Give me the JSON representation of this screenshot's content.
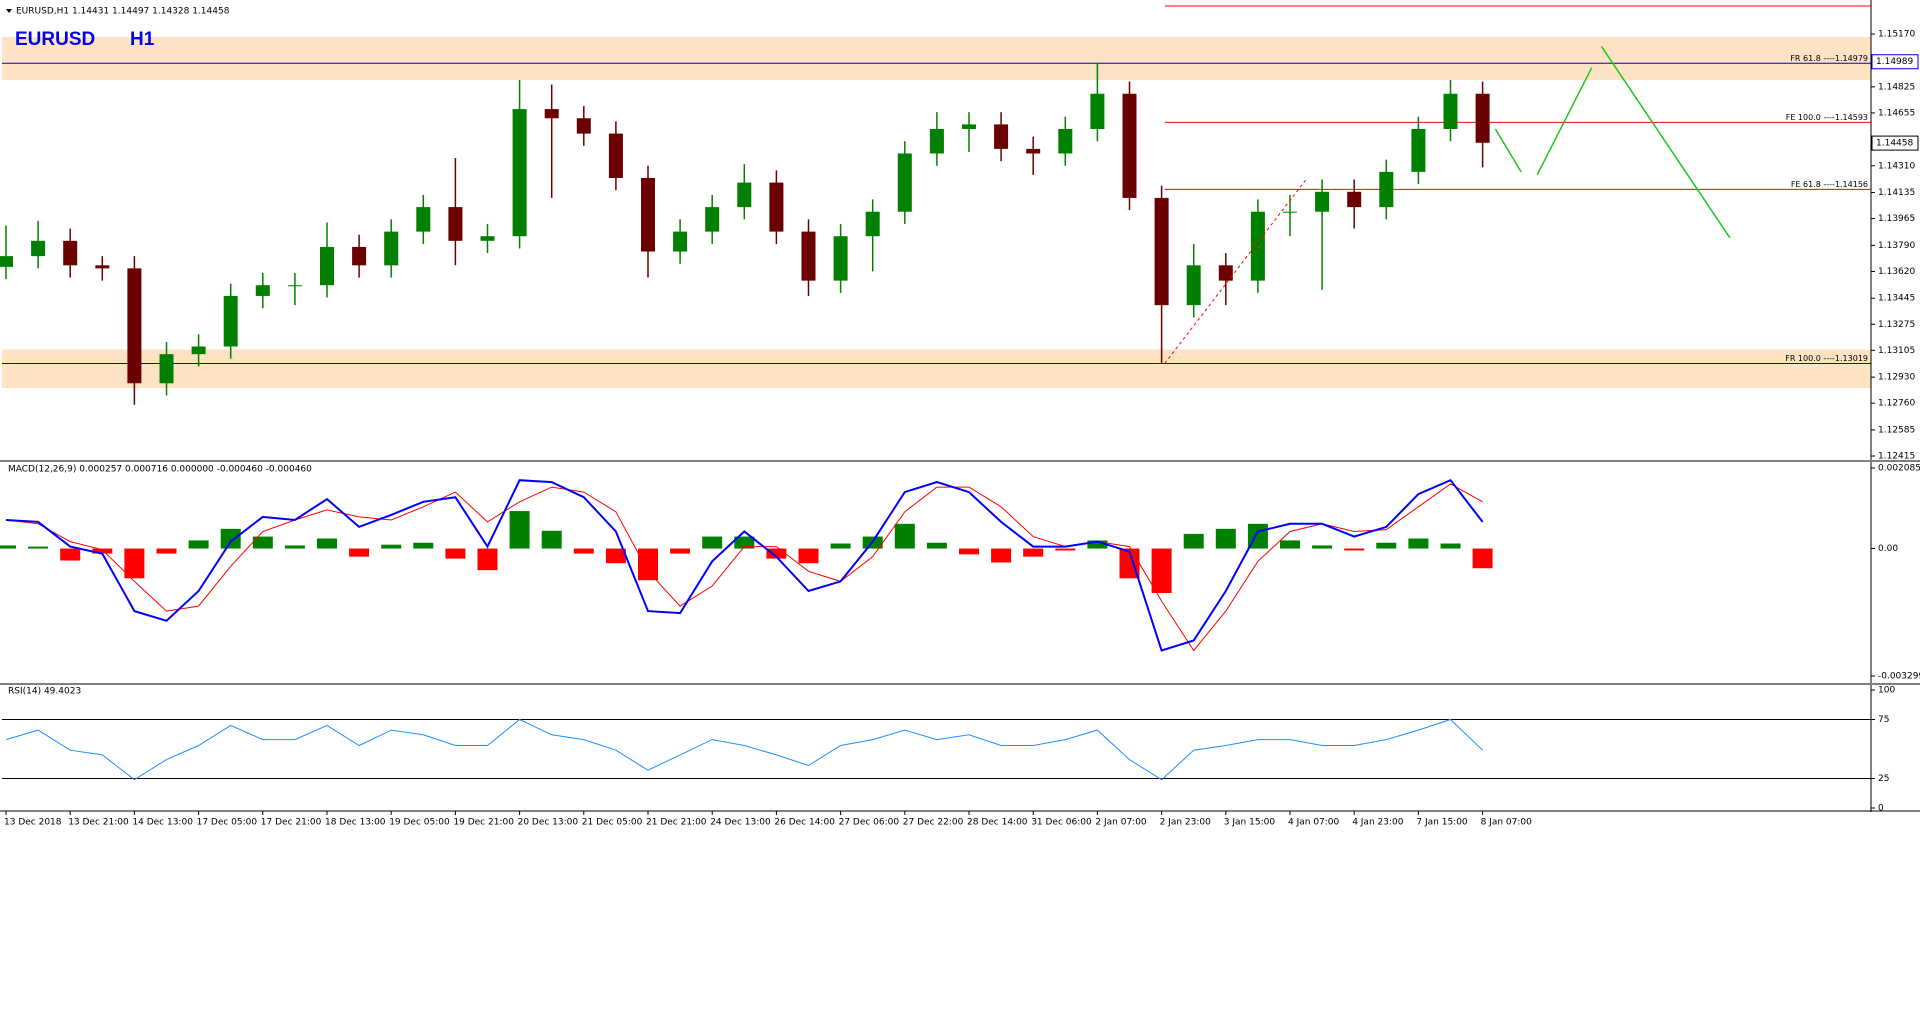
{
  "chart_data": [
    {
      "type": "candlestick",
      "title": "EURUSD,H1 1.14431 1.14497 1.14328 1.14458",
      "symbol": "EURUSD",
      "timeframe": "H1",
      "categories": [
        "13 Dec 2018",
        null,
        "13 Dec 21:00",
        null,
        "14 Dec 13:00",
        null,
        "17 Dec 05:00",
        null,
        "17 Dec 21:00",
        null,
        "18 Dec 13:00",
        null,
        "19 Dec 05:00",
        null,
        "19 Dec 21:00",
        null,
        "20 Dec 13:00",
        null,
        "21 Dec 05:00",
        null,
        "21 Dec 21:00",
        null,
        "24 Dec 13:00",
        null,
        "26 Dec 14:00",
        null,
        "27 Dec 06:00",
        null,
        "27 Dec 22:00",
        null,
        "28 Dec 14:00",
        null,
        "31 Dec 06:00",
        null,
        "2 Jan 07:00",
        null,
        "2 Jan 23:00",
        null,
        "3 Jan 15:00",
        null,
        "4 Jan 07:00",
        null,
        "4 Jan 23:00",
        null,
        "7 Jan 15:00",
        null,
        "8 Jan 07:00"
      ],
      "open": [
        1.1365,
        1.1372,
        1.1382,
        1.1366,
        1.1364,
        1.1289,
        1.1308,
        1.1313,
        1.1346,
        1.1353,
        1.1353,
        1.1378,
        1.1366,
        1.1388,
        1.1404,
        1.1382,
        1.1385,
        1.1468,
        1.1462,
        1.1452,
        1.1423,
        1.1375,
        1.1388,
        1.1404,
        1.142,
        1.1388,
        1.1356,
        1.1385,
        1.1401,
        1.1439,
        1.1455,
        1.1458,
        1.1442,
        1.1439,
        1.1455,
        1.1478,
        1.141,
        1.134,
        1.1366,
        1.1356,
        1.1401,
        1.1401,
        1.1414,
        1.1404,
        1.1427,
        1.1455,
        1.1478
      ],
      "high": [
        1.1392,
        1.1395,
        1.139,
        1.1372,
        1.1372,
        1.1316,
        1.1321,
        1.1354,
        1.1361,
        1.1361,
        1.1394,
        1.1386,
        1.1396,
        1.1412,
        1.1436,
        1.1393,
        1.1487,
        1.1484,
        1.147,
        1.146,
        1.1431,
        1.1396,
        1.1412,
        1.1432,
        1.1428,
        1.1396,
        1.1393,
        1.1409,
        1.1447,
        1.1466,
        1.1466,
        1.1466,
        1.145,
        1.1463,
        1.1498,
        1.1486,
        1.1418,
        1.138,
        1.1374,
        1.1409,
        1.1412,
        1.1422,
        1.1422,
        1.1435,
        1.1463,
        1.1487,
        1.1486
      ],
      "low": [
        1.1357,
        1.1364,
        1.1358,
        1.1356,
        1.1275,
        1.1281,
        1.13,
        1.1305,
        1.1338,
        1.134,
        1.1345,
        1.1358,
        1.1358,
        1.138,
        1.1366,
        1.1374,
        1.1377,
        1.141,
        1.1444,
        1.1415,
        1.1358,
        1.1367,
        1.138,
        1.1396,
        1.138,
        1.1346,
        1.1348,
        1.1362,
        1.1393,
        1.1431,
        1.144,
        1.1434,
        1.1425,
        1.1431,
        1.1447,
        1.1402,
        1.1302,
        1.1332,
        1.134,
        1.1348,
        1.1385,
        1.135,
        1.139,
        1.1396,
        1.1419,
        1.1447,
        1.143
      ],
      "close": [
        1.1372,
        1.1382,
        1.1366,
        1.1364,
        1.1289,
        1.1308,
        1.1313,
        1.1346,
        1.1353,
        1.1353,
        1.1378,
        1.1366,
        1.1388,
        1.1404,
        1.1382,
        1.1385,
        1.1468,
        1.1462,
        1.1452,
        1.1423,
        1.1375,
        1.1388,
        1.1404,
        1.142,
        1.1388,
        1.1356,
        1.1385,
        1.1401,
        1.1439,
        1.1455,
        1.1458,
        1.1442,
        1.1439,
        1.1455,
        1.1478,
        1.141,
        1.134,
        1.1366,
        1.1356,
        1.1401,
        1.1401,
        1.1414,
        1.1404,
        1.1427,
        1.1455,
        1.1478,
        1.1446
      ],
      "up_color": "#008000",
      "down_color": "#6b0000",
      "ylim": [
        1.12389,
        1.15366
      ],
      "yticks": [
        {
          "value": 1.1517,
          "label": "1.15170"
        },
        1.14825,
        1.14655,
        {
          "value": 1.1431,
          "label": "1.14310"
        },
        1.14135,
        1.13965,
        {
          "value": 1.1379,
          "label": "1.13790"
        },
        {
          "value": 1.1362,
          "label": "1.13620"
        },
        1.13445,
        1.13275,
        1.13105,
        {
          "value": 1.1293,
          "label": "1.12930"
        },
        {
          "value": 1.1276,
          "label": "1.12760"
        },
        1.12585,
        1.12415
      ],
      "zones": [
        {
          "low": 1.1487,
          "high": 1.1515,
          "color": "#fde3c4"
        },
        {
          "low": 1.1286,
          "high": 1.1311,
          "color": "#fde3c4"
        }
      ],
      "levels": [
        {
          "label": "FR 61.8 ----1.14979",
          "value": 1.14979,
          "color": "#0000cc"
        },
        {
          "label": "FR 100.0 ----1.13019",
          "value": 1.13019,
          "color": "#0000cc"
        },
        {
          "label": "FE 100.0 ----1.14593",
          "value": 1.14593,
          "color": "#ff0000",
          "x_start": 36.1
        },
        {
          "label": "FE 61.8 ----1.14156",
          "value": 1.14156,
          "color": "#ff0000",
          "x_start": 36.1
        },
        {
          "value": 1.15353,
          "color": "#ff0000",
          "x_start": 36.1
        }
      ],
      "fib_leg": {
        "x": [
          36.1,
          40.5
        ],
        "values": [
          1.1302,
          1.1422
        ],
        "color": "#ff0000"
      },
      "projection": {
        "color": "#22c322",
        "segments": [
          {
            "x": [
              46.4,
              47.2
            ],
            "values": [
              1.1455,
              1.1427
            ]
          },
          {
            "x": [
              47.7,
              49.4
            ],
            "values": [
              1.1425,
              1.1495
            ]
          },
          {
            "x": [
              49.7,
              53.7
            ],
            "values": [
              1.1509,
              1.1384
            ]
          }
        ]
      },
      "price_boxes": [
        {
          "value": 1.14989,
          "color": "#0000cc"
        },
        {
          "value": 1.14458,
          "color": "#000000"
        }
      ]
    },
    {
      "type": "macd",
      "title": "MACD(12,26,9) 0.000257 0.000716 0.000000 -0.000460 -0.000460",
      "ylim": [
        -0.00348,
        0.00224
      ],
      "yticks": [
        0.002085,
        {
          "value": 0,
          "label": "0.00"
        },
        -0.003299
      ],
      "histogram": [
        8e-05,
        5e-05,
        -0.00031,
        -0.00013,
        -0.00077,
        -0.00013,
        0.00021,
        0.00051,
        0.00031,
        8e-05,
        0.00026,
        -0.00021,
        0.0001,
        0.00015,
        -0.00026,
        -0.00056,
        0.00097,
        0.00046,
        -0.00013,
        -0.00038,
        -0.00082,
        -0.00013,
        0.00031,
        0.00031,
        -0.00026,
        -0.00038,
        0.00013,
        0.00031,
        0.00064,
        0.00015,
        -0.00015,
        -0.00036,
        -0.00021,
        -5e-05,
        0.00021,
        -0.00077,
        -0.00115,
        0.00038,
        0.00051,
        0.00064,
        0.00021,
        8e-05,
        -5e-05,
        0.00015,
        0.00026,
        0.00013,
        -0.00051
      ],
      "pos_color": "#008000",
      "neg_color": "#ff0000",
      "macd": [
        0.00074,
        0.00069,
        5e-05,
        -0.00013,
        -0.00162,
        -0.00187,
        -0.0011,
        0.00018,
        0.00082,
        0.00074,
        0.00128,
        0.00056,
        0.00087,
        0.00121,
        0.00133,
        5e-05,
        0.00177,
        0.00172,
        0.00133,
        0.00044,
        -0.00162,
        -0.00167,
        -0.00033,
        0.00044,
        -0.00021,
        -0.0011,
        -0.00085,
        0.00018,
        0.00146,
        0.00172,
        0.00146,
        0.00069,
        5e-05,
        5e-05,
        0.00018,
        -8e-05,
        -0.00264,
        -0.00238,
        -0.0011,
        0.00044,
        0.00064,
        0.00064,
        0.00031,
        0.00056,
        0.00141,
        0.00177,
        0.00069
      ],
      "macd_color": "#0000ff",
      "signal": [
        0.00074,
        0.00064,
        0.00018,
        -3e-05,
        -0.00085,
        -0.00162,
        -0.00149,
        -0.00046,
        0.00044,
        0.00074,
        0.001,
        0.00082,
        0.00074,
        0.00108,
        0.00146,
        0.00069,
        0.00121,
        0.00159,
        0.00146,
        0.00095,
        -0.00059,
        -0.00149,
        -0.00097,
        5e-05,
        5e-05,
        -0.00059,
        -0.00085,
        -0.00021,
        0.00095,
        0.00159,
        0.00159,
        0.00108,
        0.00031,
        5e-05,
        0.00018,
        5e-05,
        -0.00136,
        -0.00264,
        -0.00162,
        -0.00033,
        0.00044,
        0.00064,
        0.00044,
        0.00049,
        0.00108,
        0.00167,
        0.00121
      ],
      "signal_color": "#ff0000"
    },
    {
      "type": "rsi",
      "title": "RSI(14) 49.4023",
      "ylim": [
        -1.7,
        103.4
      ],
      "yticks": [
        0,
        25,
        75,
        100
      ],
      "levels": [
        25,
        75
      ],
      "values": [
        58,
        66,
        49,
        45,
        24,
        41,
        53,
        70,
        58,
        58,
        70,
        53,
        66,
        62,
        53,
        53,
        75,
        62,
        58,
        49,
        32,
        45,
        58,
        53,
        45,
        36,
        53,
        58,
        66,
        58,
        62,
        53,
        53,
        58,
        66,
        41,
        24,
        49,
        53,
        58,
        58,
        53,
        53,
        58,
        66,
        75,
        49
      ],
      "color": "#1e90ff"
    }
  ]
}
